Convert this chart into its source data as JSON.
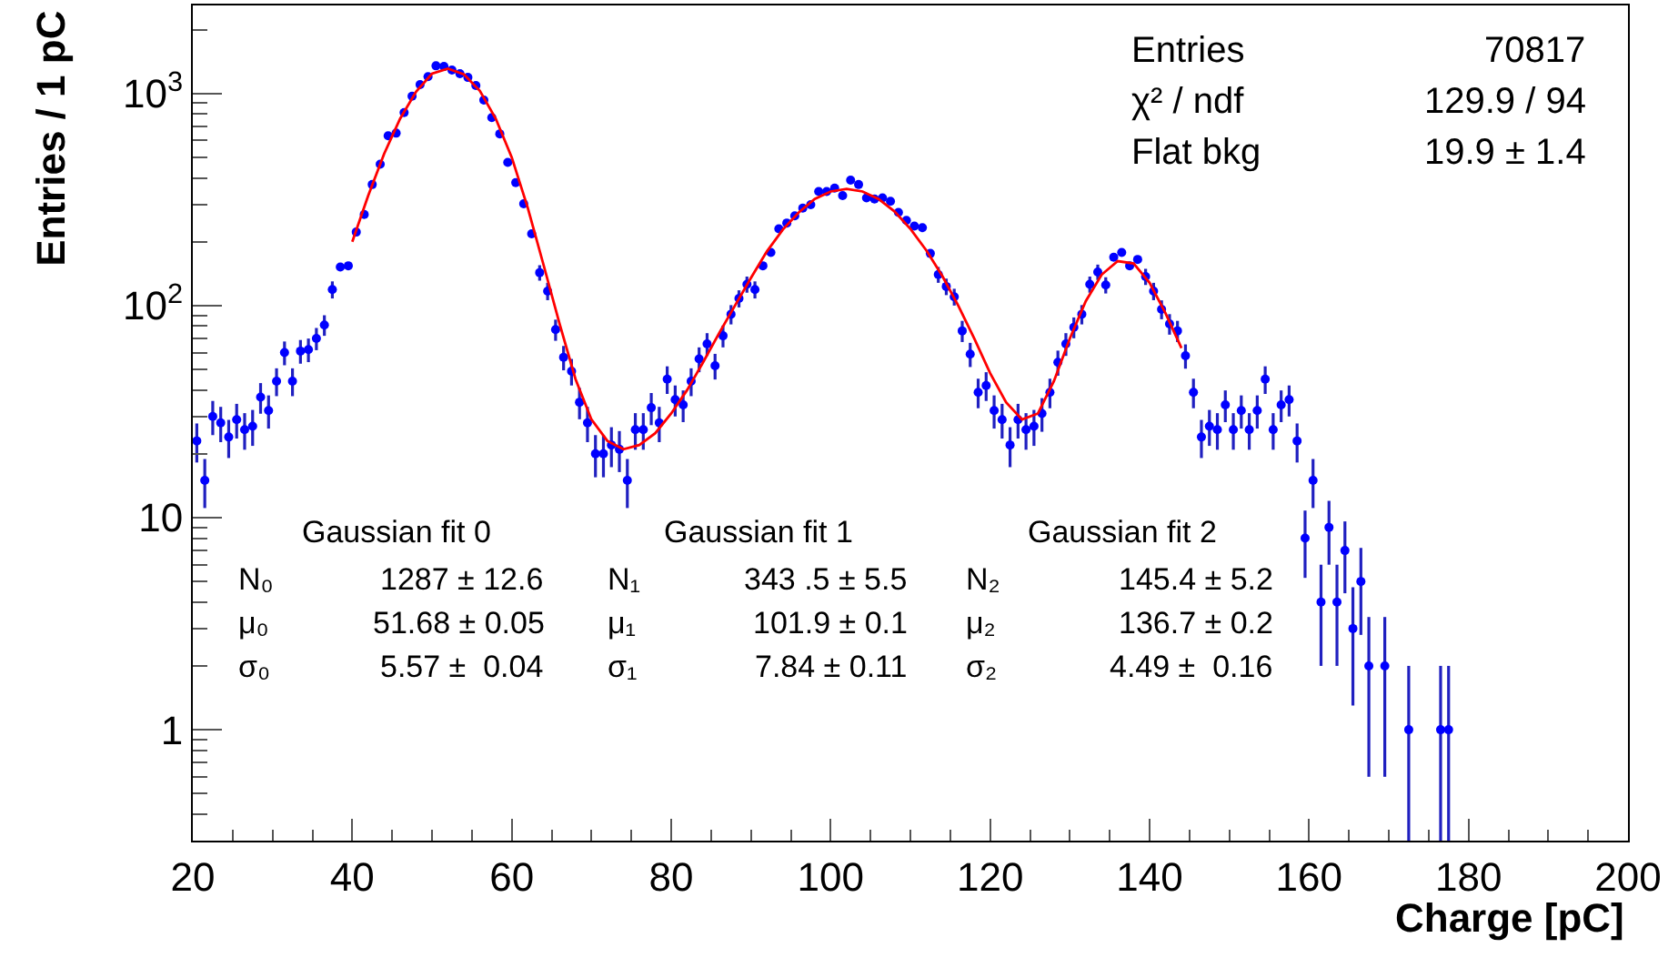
{
  "chart_data": {
    "type": "scatter",
    "xlabel": "Charge [pC]",
    "ylabel": "Entries / 1 pC",
    "log": "y",
    "xlim": [
      20,
      200
    ],
    "xticks": [
      20,
      40,
      60,
      80,
      100,
      120,
      140,
      160,
      180,
      200
    ],
    "ylim": [
      0.3,
      2600
    ],
    "yticks": [
      1,
      10,
      {
        "value": 100,
        "label": "10$^{2}$"
      },
      {
        "value": 1000,
        "label": "10$^{3}$"
      }
    ],
    "annotations": [
      "Entries",
      "70817",
      "χ² / ndf",
      "129.9 / 94",
      "Flat bkg",
      "19.9 ± 1.4",
      "Gaussian fit 0",
      "N₀",
      "μ₀",
      "σ₀",
      "1287 ± 12.6",
      "51.68 ± 0.05",
      "5.57 ±  0.04",
      "Gaussian fit 1",
      "N₁",
      "μ₁",
      "σ₁",
      "343 .5 ± 5.5",
      "101.9 ± 0.1",
      "7.84 ± 0.11",
      "Gaussian fit 2",
      "N₂",
      "μ₂",
      "σ₂",
      "145.4 ± 5.2",
      "136.7 ± 0.2",
      "4.49 ±  0.16"
    ],
    "series": [
      {
        "color": "#0000ff",
        "marker": "circle",
        "x": [
          20.5,
          21.5,
          22.5,
          23.5,
          24.5,
          25.5,
          26.5,
          27.5,
          28.5,
          29.5,
          30.5,
          31.5,
          32.5,
          33.5,
          34.5,
          35.5,
          36.5,
          37.5,
          38.5,
          39.5,
          40.5,
          41.5,
          42.5,
          43.5,
          44.5,
          45.5,
          46.5,
          47.5,
          48.5,
          49.5,
          50.5,
          51.5,
          52.5,
          53.5,
          54.5,
          55.5,
          56.5,
          57.5,
          58.5,
          59.5,
          60.5,
          61.5,
          62.5,
          63.5,
          64.5,
          65.5,
          66.5,
          67.5,
          68.5,
          69.5,
          70.5,
          71.5,
          72.5,
          73.5,
          74.5,
          75.5,
          76.5,
          77.5,
          78.5,
          79.5,
          80.5,
          81.5,
          82.5,
          83.5,
          84.5,
          85.5,
          86.5,
          87.5,
          88.5,
          89.5,
          90.5,
          91.5,
          92.5,
          93.5,
          94.5,
          95.5,
          96.5,
          97.5,
          98.5,
          99.5,
          100.5,
          101.5,
          102.5,
          103.5,
          104.5,
          105.5,
          106.5,
          107.5,
          108.5,
          109.5,
          110.5,
          111.5,
          112.5,
          113.5,
          114.5,
          115.5,
          116.5,
          117.5,
          118.5,
          119.5,
          120.5,
          121.5,
          122.5,
          123.5,
          124.5,
          125.5,
          126.5,
          127.5,
          128.5,
          129.5,
          130.5,
          131.5,
          132.5,
          133.5,
          134.5,
          135.5,
          136.5,
          137.5,
          138.5,
          139.5,
          140.5,
          141.5,
          142.5,
          143.5,
          144.5,
          145.5,
          146.5,
          147.5,
          148.5,
          149.5,
          150.5,
          151.5,
          152.5,
          153.5,
          154.5,
          155.5,
          156.5,
          157.5,
          158.5,
          159.5,
          160.5,
          161.5,
          162.5,
          163.5,
          164.5,
          165.5,
          166.5,
          167.5,
          168.5,
          169.5,
          170.5,
          171.5,
          172.5,
          173.5,
          174.5,
          175.5,
          176.5,
          177.5
        ],
        "values": [
          23,
          15,
          30,
          28,
          24,
          29,
          26,
          27,
          37,
          32,
          44,
          60,
          44,
          61,
          62,
          70,
          81,
          119,
          152,
          154,
          222,
          269,
          372,
          464,
          632,
          650,
          812,
          970,
          1100,
          1200,
          1350,
          1340,
          1290,
          1240,
          1190,
          1090,
          930,
          770,
          645,
          473,
          380,
          302,
          218,
          143,
          117,
          77,
          57,
          49,
          35,
          28,
          20,
          20,
          22,
          21,
          15,
          26,
          26,
          33,
          28,
          45,
          36,
          34,
          44,
          56,
          66,
          52,
          72,
          91,
          108,
          126,
          119,
          154,
          178,
          230,
          245,
          265,
          288,
          299,
          345,
          345,
          358,
          330,
          390,
          372,
          322,
          318,
          322,
          310,
          275,
          252,
          237,
          233,
          176,
          140,
          123,
          110,
          76,
          59,
          39,
          42,
          32,
          29,
          22,
          29,
          26,
          27,
          31,
          39,
          54,
          66,
          79,
          91,
          126,
          144,
          125,
          169,
          178,
          154,
          165,
          137,
          117,
          96,
          82,
          76,
          58,
          39,
          24,
          27,
          26,
          34,
          26,
          32,
          26,
          32,
          45,
          26,
          34,
          36,
          23,
          8,
          15,
          4,
          9,
          4,
          7,
          3,
          5,
          2,
          null,
          2,
          null,
          null,
          1,
          null,
          null,
          null,
          1,
          1
        ],
        "errors": [
          4.8,
          3.9,
          5.5,
          5.3,
          4.9,
          5.4,
          5.1,
          5.2,
          6.1,
          5.7,
          6.6,
          7.7,
          6.6,
          7.8,
          7.9,
          8.4,
          9,
          11,
          null,
          null,
          null,
          null,
          null,
          null,
          null,
          null,
          null,
          null,
          null,
          null,
          null,
          null,
          null,
          null,
          null,
          null,
          null,
          null,
          null,
          null,
          null,
          null,
          null,
          12,
          11,
          8.8,
          7.5,
          7,
          5.9,
          5.3,
          4.5,
          4.5,
          4.7,
          4.6,
          3.9,
          5.1,
          5.1,
          5.7,
          5.3,
          6.7,
          6,
          5.8,
          6.6,
          7.5,
          8.1,
          7.2,
          8.5,
          9.5,
          10,
          11,
          11,
          null,
          null,
          null,
          null,
          null,
          null,
          null,
          null,
          null,
          null,
          null,
          null,
          null,
          null,
          null,
          null,
          null,
          null,
          null,
          null,
          null,
          null,
          12,
          11,
          10,
          8.7,
          7.7,
          6.2,
          6.5,
          5.7,
          5.4,
          4.7,
          5.4,
          5.1,
          5.2,
          5.6,
          6.2,
          7.3,
          8.1,
          8.9,
          9.5,
          11,
          12,
          11,
          null,
          null,
          null,
          null,
          12,
          11,
          9.8,
          9.1,
          8.7,
          7.6,
          6.2,
          4.9,
          5.2,
          5.1,
          5.8,
          5.1,
          5.7,
          5.1,
          5.7,
          6.7,
          5.1,
          5.8,
          6,
          4.8,
          2.8,
          3.9,
          2,
          3,
          2,
          2.6,
          1.7,
          2.2,
          1.4,
          null,
          1.4,
          null,
          null,
          [
            0.3,
            2
          ],
          null,
          null,
          null,
          [
            0.3,
            2
          ],
          [
            0.3,
            2
          ]
        ]
      },
      {
        "type": "line",
        "color": "#ff0000",
        "marker": "none",
        "line_style": "solid",
        "x": [
          40,
          42,
          44,
          46,
          48,
          50,
          52,
          54,
          56,
          58,
          60,
          62,
          64,
          66,
          68,
          70,
          72,
          74,
          76,
          78,
          80,
          82,
          84,
          86,
          88,
          90,
          92,
          94,
          96,
          98,
          100,
          102,
          104,
          106,
          108,
          110,
          112,
          114,
          116,
          118,
          120,
          122,
          124,
          126,
          128,
          130,
          132,
          134,
          136,
          138,
          140,
          142,
          144
        ],
        "values": [
          200,
          330,
          520,
          760,
          1020,
          1240,
          1310,
          1230,
          1030,
          760,
          500,
          290,
          155,
          82,
          45,
          29,
          23,
          21,
          22,
          25,
          31,
          40,
          54,
          74,
          100,
          135,
          180,
          228,
          275,
          318,
          345,
          355,
          345,
          318,
          278,
          230,
          182,
          138,
          100,
          70,
          48,
          35,
          29,
          31,
          44,
          70,
          105,
          140,
          162,
          158,
          128,
          92,
          63
        ]
      }
    ]
  }
}
